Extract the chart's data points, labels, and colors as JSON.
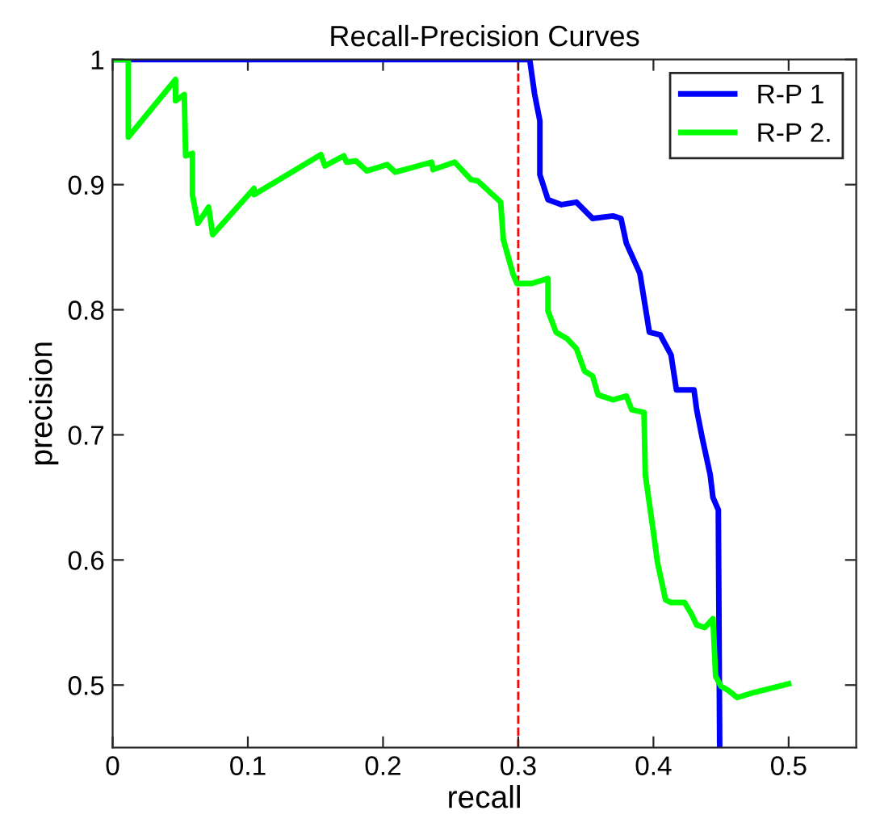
{
  "chart_data": {
    "type": "line",
    "title": "Recall-Precision Curves",
    "xlabel": "recall",
    "ylabel": "precision",
    "xlim": [
      0,
      0.55
    ],
    "ylim": [
      0.45,
      1
    ],
    "xticks": [
      0,
      0.1,
      0.2,
      0.3,
      0.4,
      0.5
    ],
    "yticks": [
      0.5,
      0.6,
      0.7,
      0.8,
      0.9,
      1
    ],
    "grid": false,
    "legend": "top right",
    "line_style": "solid",
    "marker": "none",
    "ref_lines": [
      {
        "axis": "x",
        "value": 0.3,
        "color": "#ff0000",
        "line_style": "dashed"
      }
    ],
    "series": [
      {
        "name": "R-P 1",
        "color": "#0000ff",
        "x": [
          0,
          0.3085,
          0.312,
          0.316,
          0.316,
          0.322,
          0.332,
          0.343,
          0.355,
          0.37,
          0.376,
          0.38,
          0.39,
          0.397,
          0.405,
          0.413,
          0.417,
          0.43,
          0.432,
          0.436,
          0.442,
          0.444,
          0.448,
          0.449
        ],
        "values": [
          1,
          1,
          0.973,
          0.951,
          0.908,
          0.888,
          0.884,
          0.886,
          0.873,
          0.875,
          0.873,
          0.853,
          0.829,
          0.782,
          0.78,
          0.764,
          0.736,
          0.736,
          0.72,
          0.698,
          0.668,
          0.65,
          0.64,
          0.45
        ]
      },
      {
        "name": "R-P 2.",
        "color": "#00ff00",
        "x": [
          0,
          0.0116,
          0.0116,
          0.0465,
          0.0465,
          0.053,
          0.054,
          0.059,
          0.059,
          0.063,
          0.071,
          0.074,
          0.1046,
          0.1046,
          0.154,
          0.157,
          0.171,
          0.173,
          0.18,
          0.188,
          0.203,
          0.209,
          0.236,
          0.237,
          0.253,
          0.265,
          0.27,
          0.281,
          0.287,
          0.289,
          0.296,
          0.299,
          0.31,
          0.322,
          0.322,
          0.328,
          0.336,
          0.343,
          0.349,
          0.355,
          0.359,
          0.37,
          0.38,
          0.384,
          0.393,
          0.394,
          0.4,
          0.403,
          0.409,
          0.413,
          0.423,
          0.428,
          0.432,
          0.438,
          0.444,
          0.446,
          0.45,
          0.455,
          0.462,
          0.474,
          0.5
        ],
        "values": [
          1,
          1,
          0.938,
          0.984,
          0.967,
          0.972,
          0.923,
          0.925,
          0.892,
          0.869,
          0.882,
          0.86,
          0.897,
          0.892,
          0.924,
          0.915,
          0.923,
          0.918,
          0.919,
          0.911,
          0.916,
          0.91,
          0.918,
          0.912,
          0.918,
          0.904,
          0.903,
          0.892,
          0.886,
          0.856,
          0.829,
          0.821,
          0.821,
          0.825,
          0.799,
          0.782,
          0.777,
          0.769,
          0.751,
          0.747,
          0.732,
          0.728,
          0.731,
          0.72,
          0.718,
          0.668,
          0.622,
          0.598,
          0.568,
          0.566,
          0.566,
          0.557,
          0.548,
          0.546,
          0.553,
          0.507,
          0.499,
          0.496,
          0.49,
          0.494,
          0.501
        ]
      }
    ]
  }
}
